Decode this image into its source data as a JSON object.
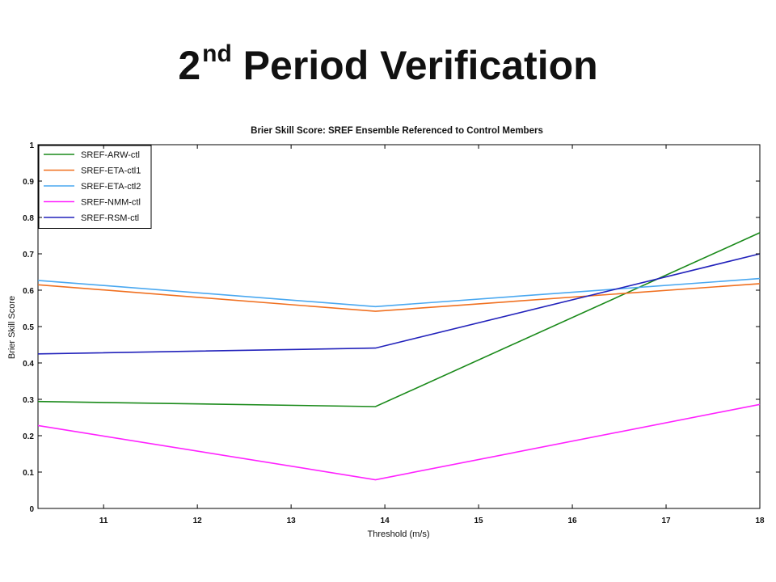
{
  "slide": {
    "title_main": "2",
    "title_sup": "nd",
    "title_rest": " Period Verification"
  },
  "chart_data": {
    "type": "line",
    "title": "Brier Skill Score: SREF Ensemble Referenced to Control Members",
    "xlabel": "Threshold (m/s)",
    "ylabel": "Brier Skill Score",
    "xlim": [
      10.3,
      18
    ],
    "ylim": [
      0,
      1
    ],
    "xticks": [
      11,
      12,
      13,
      14,
      15,
      16,
      17,
      18
    ],
    "yticks": [
      0,
      0.1,
      0.2,
      0.3,
      0.4,
      0.5,
      0.6,
      0.7,
      0.8,
      0.9,
      1
    ],
    "ytick_labels": [
      "0",
      "0.1",
      "0.2",
      "0.3",
      "0.4",
      "0.5",
      "0.6",
      "0.7",
      "0.8",
      "0.9",
      "1"
    ],
    "x": [
      10.3,
      13.9,
      18
    ],
    "grid": false,
    "legend_position": "top-left",
    "series": [
      {
        "name": "SREF-ARW-ctl",
        "color": "#1a8a1a",
        "values": [
          0.294,
          0.28,
          0.758
        ]
      },
      {
        "name": "SREF-ETA-ctl1",
        "color": "#f07020",
        "values": [
          0.615,
          0.542,
          0.618
        ]
      },
      {
        "name": "SREF-ETA-ctl2",
        "color": "#4aa8f0",
        "values": [
          0.627,
          0.555,
          0.632
        ]
      },
      {
        "name": "SREF-NMM-ctl",
        "color": "#ff22ff",
        "values": [
          0.228,
          0.079,
          0.286
        ]
      },
      {
        "name": "SREF-RSM-ctl",
        "color": "#2222bb",
        "values": [
          0.425,
          0.441,
          0.7
        ]
      }
    ]
  }
}
